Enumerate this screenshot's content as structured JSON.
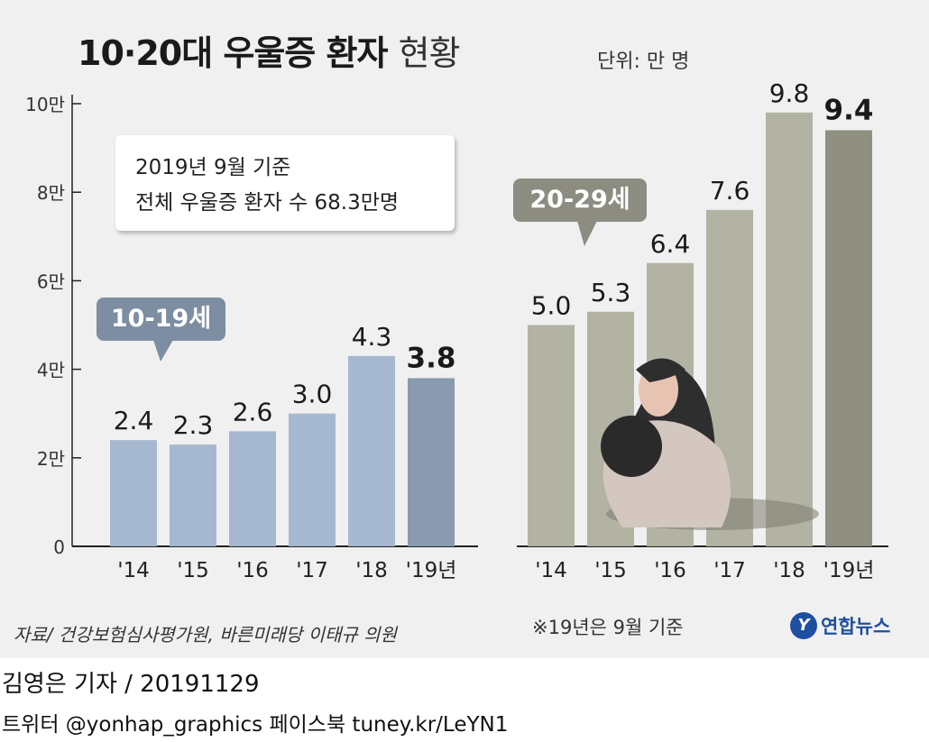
{
  "header": {
    "title_bold": "10·20대 우울증 환자",
    "title_light": "현황",
    "unit": "단위: 만 명"
  },
  "note": {
    "line1": "2019년 9월 기준",
    "line2": "전체 우울증 환자 수 68.3만명"
  },
  "footer": {
    "source": "자료/ 건강보험심사평가원, 바른미래당 이태규 의원",
    "footnote": "※19년은 9월 기준",
    "logo_text": "연합뉴스",
    "logo_mark": "Y",
    "reporter": "김영은 기자 / 20191129",
    "social": "트위터 @yonhap_graphics  페이스북 tuney.kr/LeYN1"
  },
  "colors": {
    "teen_bar": "#a6b8cf",
    "teen_bar_latest": "#8a9bb0",
    "twenties_bar": "#b2b3a3",
    "twenties_bar_latest": "#8f9080",
    "axis": "#222222"
  },
  "chart_data": {
    "type": "bar",
    "ylim": [
      0,
      10
    ],
    "yticks": [
      {
        "value": 0,
        "label": "0"
      },
      {
        "value": 2,
        "label": "2만"
      },
      {
        "value": 4,
        "label": "4만"
      },
      {
        "value": 6,
        "label": "6만"
      },
      {
        "value": 8,
        "label": "8만"
      },
      {
        "value": 10,
        "label": "10만"
      }
    ],
    "categories": [
      "'14",
      "'15",
      "'16",
      "'17",
      "'18",
      "'19년"
    ],
    "series": [
      {
        "name": "10-19세",
        "values": [
          2.4,
          2.3,
          2.6,
          3.0,
          4.3,
          3.8
        ],
        "labels": [
          "2.4",
          "2.3",
          "2.6",
          "3.0",
          "4.3",
          "3.8"
        ]
      },
      {
        "name": "20-29세",
        "values": [
          5.0,
          5.3,
          6.4,
          7.6,
          9.8,
          9.4
        ],
        "labels": [
          "5.0",
          "5.3",
          "6.4",
          "7.6",
          "9.8",
          "9.4"
        ]
      }
    ],
    "grid": false,
    "legend": "callout"
  }
}
